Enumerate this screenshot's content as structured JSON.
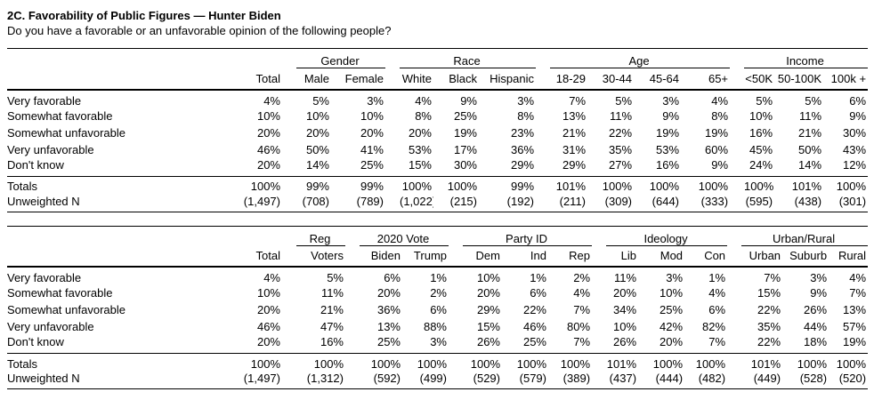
{
  "page": {
    "title": "2C. Favorability of Public Figures — Hunter Biden",
    "subtitle": "Do you have a favorable or an unfavorable opinion of the following people?"
  },
  "colors": {
    "text": "#000000",
    "rule": "#000000",
    "background": "#ffffff"
  },
  "tables": [
    {
      "name": "demographics-crosstab",
      "total_header": "Total",
      "groups": [
        {
          "label": "Gender",
          "cols": [
            "Male",
            "Female"
          ]
        },
        {
          "label": "Race",
          "cols": [
            "White",
            "Black",
            "Hispanic"
          ]
        },
        {
          "label": "Age",
          "cols": [
            "18-29",
            "30-44",
            "45-64",
            "65+"
          ]
        },
        {
          "label": "Income",
          "cols": [
            "<50K",
            "50-100K",
            "100k +"
          ]
        }
      ],
      "rows": [
        {
          "label": "Very favorable",
          "values": [
            "4%",
            "5%",
            "3%",
            "4%",
            "9%",
            "3%",
            "7%",
            "5%",
            "3%",
            "4%",
            "5%",
            "5%",
            "6%"
          ]
        },
        {
          "label": "Somewhat favorable",
          "values": [
            "10%",
            "10%",
            "10%",
            "8%",
            "25%",
            "8%",
            "13%",
            "11%",
            "9%",
            "8%",
            "10%",
            "11%",
            "9%"
          ]
        },
        {
          "label": "Somewhat unfavorable",
          "values": [
            "20%",
            "20%",
            "20%",
            "20%",
            "19%",
            "23%",
            "21%",
            "22%",
            "19%",
            "19%",
            "16%",
            "21%",
            "30%"
          ]
        },
        {
          "label": "Very unfavorable",
          "values": [
            "46%",
            "50%",
            "41%",
            "53%",
            "17%",
            "36%",
            "31%",
            "35%",
            "53%",
            "60%",
            "45%",
            "50%",
            "43%"
          ]
        },
        {
          "label": "Don't know",
          "values": [
            "20%",
            "14%",
            "25%",
            "15%",
            "30%",
            "29%",
            "29%",
            "27%",
            "16%",
            "9%",
            "24%",
            "14%",
            "12%"
          ]
        }
      ],
      "summary_rows": [
        {
          "label": "Totals",
          "values": [
            "100%",
            "99%",
            "99%",
            "100%",
            "100%",
            "99%",
            "101%",
            "100%",
            "100%",
            "100%",
            "100%",
            "101%",
            "100%"
          ]
        },
        {
          "label": "Unweighted N",
          "values": [
            "(1,497)",
            "(708)",
            "(789)",
            "(1,022)",
            "(215)",
            "(192)",
            "(211)",
            "(309)",
            "(644)",
            "(333)",
            "(595)",
            "(438)",
            "(301)"
          ]
        }
      ]
    },
    {
      "name": "politics-crosstab",
      "total_header": "Total",
      "groups": [
        {
          "label": "Reg",
          "cols": [
            "Voters"
          ]
        },
        {
          "label": "2020 Vote",
          "cols": [
            "Biden",
            "Trump"
          ]
        },
        {
          "label": "Party ID",
          "cols": [
            "Dem",
            "Ind",
            "Rep"
          ]
        },
        {
          "label": "Ideology",
          "cols": [
            "Lib",
            "Mod",
            "Con"
          ]
        },
        {
          "label": "Urban/Rural",
          "cols": [
            "Urban",
            "Suburb",
            "Rural"
          ]
        }
      ],
      "rows": [
        {
          "label": "Very favorable",
          "values": [
            "4%",
            "5%",
            "6%",
            "1%",
            "10%",
            "1%",
            "2%",
            "11%",
            "3%",
            "1%",
            "7%",
            "3%",
            "4%"
          ]
        },
        {
          "label": "Somewhat favorable",
          "values": [
            "10%",
            "11%",
            "20%",
            "2%",
            "20%",
            "6%",
            "4%",
            "20%",
            "10%",
            "4%",
            "15%",
            "9%",
            "7%"
          ]
        },
        {
          "label": "Somewhat unfavorable",
          "values": [
            "20%",
            "21%",
            "36%",
            "6%",
            "29%",
            "22%",
            "7%",
            "34%",
            "25%",
            "6%",
            "22%",
            "26%",
            "13%"
          ]
        },
        {
          "label": "Very unfavorable",
          "values": [
            "46%",
            "47%",
            "13%",
            "88%",
            "15%",
            "46%",
            "80%",
            "10%",
            "42%",
            "82%",
            "35%",
            "44%",
            "57%"
          ]
        },
        {
          "label": "Don't know",
          "values": [
            "20%",
            "16%",
            "25%",
            "3%",
            "26%",
            "25%",
            "7%",
            "26%",
            "20%",
            "7%",
            "22%",
            "18%",
            "19%"
          ]
        }
      ],
      "summary_rows": [
        {
          "label": "Totals",
          "values": [
            "100%",
            "100%",
            "100%",
            "100%",
            "100%",
            "100%",
            "100%",
            "101%",
            "100%",
            "100%",
            "101%",
            "100%",
            "100%"
          ]
        },
        {
          "label": "Unweighted N",
          "values": [
            "(1,497)",
            "(1,312)",
            "(592)",
            "(499)",
            "(529)",
            "(579)",
            "(389)",
            "(437)",
            "(444)",
            "(482)",
            "(449)",
            "(528)",
            "(520)"
          ]
        }
      ]
    }
  ]
}
